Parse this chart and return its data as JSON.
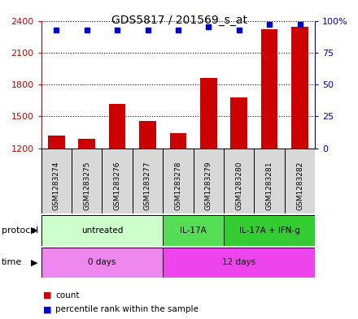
{
  "title": "GDS5817 / 201569_s_at",
  "samples": [
    "GSM1283274",
    "GSM1283275",
    "GSM1283276",
    "GSM1283277",
    "GSM1283278",
    "GSM1283279",
    "GSM1283280",
    "GSM1283281",
    "GSM1283282"
  ],
  "counts": [
    1320,
    1290,
    1620,
    1460,
    1340,
    1860,
    1680,
    2320,
    2340
  ],
  "percentiles": [
    93,
    93,
    93,
    93,
    93,
    95,
    93,
    97,
    97
  ],
  "ymin": 1200,
  "ymax": 2400,
  "yticks": [
    1200,
    1500,
    1800,
    2100,
    2400
  ],
  "ytick_labels": [
    "1200",
    "1500",
    "1800",
    "2100",
    "2400"
  ],
  "y2ticks": [
    0,
    25,
    50,
    75,
    100
  ],
  "y2tick_labels": [
    "0",
    "25",
    "50",
    "75",
    "100%"
  ],
  "bar_color": "#cc0000",
  "dot_color": "#0000cc",
  "left_axis_color": "#cc0000",
  "right_axis_color": "#0000cc",
  "grid_color": "#000000",
  "sample_box_color": "#d8d8d8",
  "protocol_groups": [
    {
      "label": "untreated",
      "start": 0,
      "end": 4,
      "color": "#ccffcc"
    },
    {
      "label": "IL-17A",
      "start": 4,
      "end": 6,
      "color": "#55dd55"
    },
    {
      "label": "IL-17A + IFN-g",
      "start": 6,
      "end": 9,
      "color": "#33cc33"
    }
  ],
  "time_groups": [
    {
      "label": "0 days",
      "start": 0,
      "end": 4,
      "color": "#ee88ee"
    },
    {
      "label": "12 days",
      "start": 4,
      "end": 9,
      "color": "#ee44ee"
    }
  ],
  "legend_items": [
    {
      "label": "count",
      "color": "#cc0000"
    },
    {
      "label": "percentile rank within the sample",
      "color": "#0000cc"
    }
  ]
}
